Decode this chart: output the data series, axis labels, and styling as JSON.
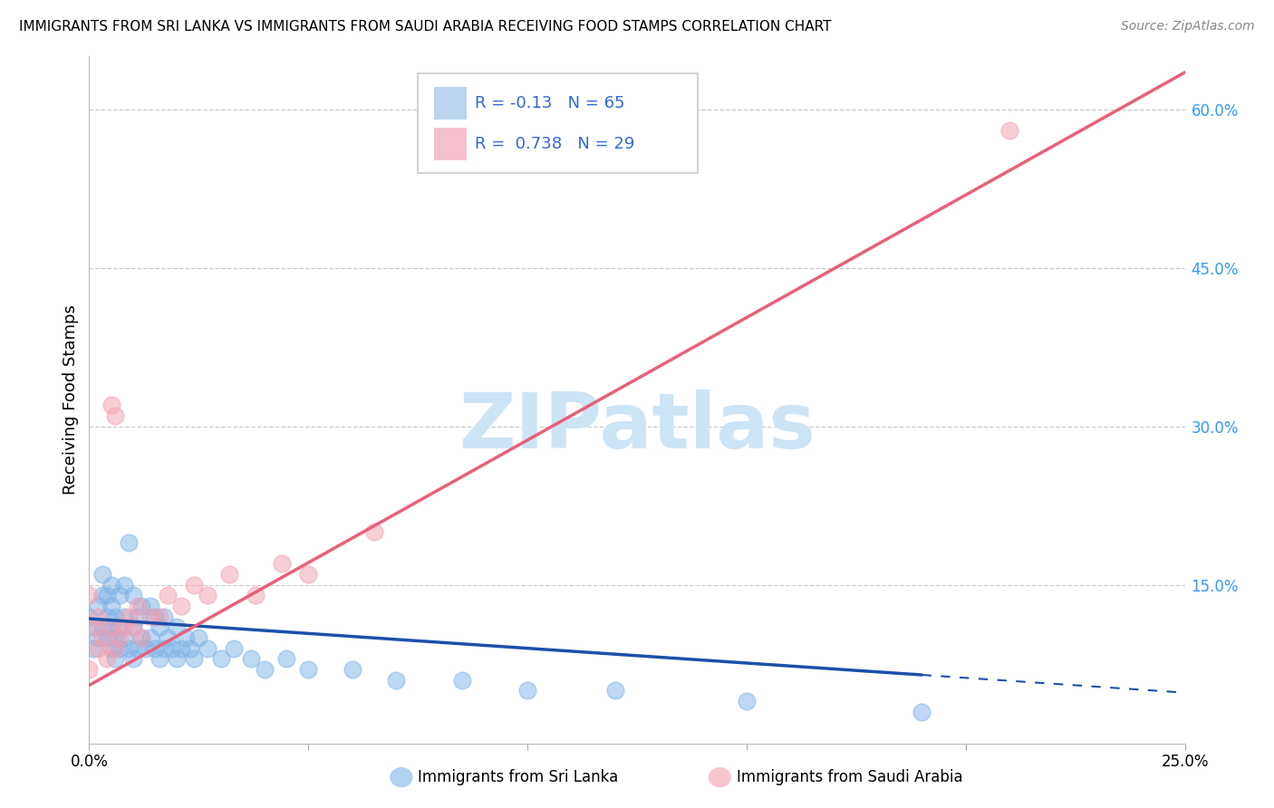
{
  "title": "IMMIGRANTS FROM SRI LANKA VS IMMIGRANTS FROM SAUDI ARABIA RECEIVING FOOD STAMPS CORRELATION CHART",
  "source": "Source: ZipAtlas.com",
  "ylabel": "Receiving Food Stamps",
  "xlim": [
    0.0,
    0.25
  ],
  "ylim": [
    0.0,
    0.65
  ],
  "y_ticks_right": [
    0.15,
    0.3,
    0.45,
    0.6
  ],
  "y_tick_labels_right": [
    "15.0%",
    "30.0%",
    "45.0%",
    "60.0%"
  ],
  "grid_color": "#cccccc",
  "watermark_color": "#cde4f5",
  "sri_lanka_color": "#7fb3e8",
  "saudi_arabia_color": "#f4a0b0",
  "sri_lanka_R": -0.13,
  "sri_lanka_N": 65,
  "saudi_arabia_R": 0.738,
  "saudi_arabia_N": 29,
  "sri_lanka_line_color": "#1e4fa8",
  "saudi_arabia_line_color": "#e8607a",
  "legend_fill_sri": "#bad4f0",
  "legend_fill_saudi": "#f4c0cc",
  "sri_lanka_x": [
    0.0,
    0.001,
    0.001,
    0.002,
    0.002,
    0.003,
    0.003,
    0.003,
    0.004,
    0.004,
    0.004,
    0.005,
    0.005,
    0.005,
    0.005,
    0.006,
    0.006,
    0.006,
    0.007,
    0.007,
    0.007,
    0.008,
    0.008,
    0.008,
    0.009,
    0.009,
    0.01,
    0.01,
    0.01,
    0.011,
    0.011,
    0.012,
    0.012,
    0.013,
    0.014,
    0.014,
    0.015,
    0.015,
    0.016,
    0.016,
    0.017,
    0.017,
    0.018,
    0.019,
    0.02,
    0.02,
    0.021,
    0.022,
    0.023,
    0.024,
    0.025,
    0.027,
    0.03,
    0.033,
    0.037,
    0.04,
    0.045,
    0.05,
    0.06,
    0.07,
    0.085,
    0.1,
    0.12,
    0.15,
    0.19
  ],
  "sri_lanka_y": [
    0.12,
    0.09,
    0.11,
    0.1,
    0.13,
    0.11,
    0.14,
    0.16,
    0.1,
    0.12,
    0.14,
    0.09,
    0.11,
    0.13,
    0.15,
    0.08,
    0.1,
    0.12,
    0.09,
    0.11,
    0.14,
    0.1,
    0.12,
    0.15,
    0.09,
    0.19,
    0.08,
    0.11,
    0.14,
    0.09,
    0.12,
    0.1,
    0.13,
    0.09,
    0.1,
    0.13,
    0.09,
    0.12,
    0.08,
    0.11,
    0.09,
    0.12,
    0.1,
    0.09,
    0.08,
    0.11,
    0.09,
    0.1,
    0.09,
    0.08,
    0.1,
    0.09,
    0.08,
    0.09,
    0.08,
    0.07,
    0.08,
    0.07,
    0.07,
    0.06,
    0.06,
    0.05,
    0.05,
    0.04,
    0.03
  ],
  "saudi_arabia_x": [
    0.0,
    0.0,
    0.001,
    0.002,
    0.002,
    0.003,
    0.004,
    0.005,
    0.005,
    0.006,
    0.006,
    0.007,
    0.008,
    0.009,
    0.01,
    0.011,
    0.012,
    0.014,
    0.016,
    0.018,
    0.021,
    0.024,
    0.027,
    0.032,
    0.038,
    0.044,
    0.05,
    0.065,
    0.21
  ],
  "saudi_arabia_y": [
    0.07,
    0.14,
    0.11,
    0.09,
    0.12,
    0.1,
    0.08,
    0.11,
    0.32,
    0.09,
    0.31,
    0.1,
    0.11,
    0.12,
    0.11,
    0.13,
    0.1,
    0.12,
    0.12,
    0.14,
    0.13,
    0.15,
    0.14,
    0.16,
    0.14,
    0.17,
    0.16,
    0.2,
    0.58
  ],
  "sl_line_x0": 0.0,
  "sl_line_y0": 0.118,
  "sl_line_x1": 0.25,
  "sl_line_y1": 0.048,
  "sa_line_x0": 0.0,
  "sa_line_y0": 0.055,
  "sa_line_x1": 0.25,
  "sa_line_y1": 0.635
}
